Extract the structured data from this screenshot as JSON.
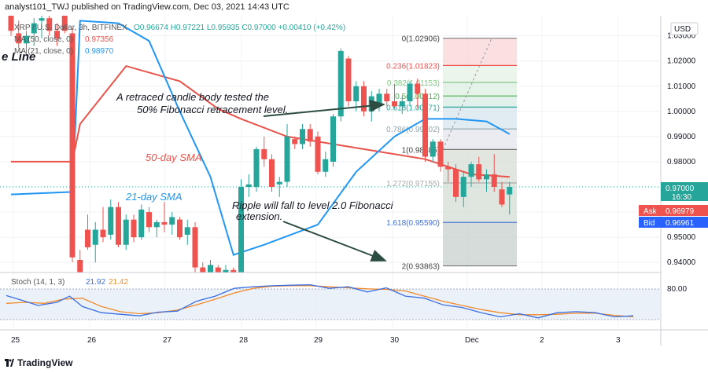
{
  "header": "analyst101_TWJ published on TradingView.com, Dec 03, 2021 14:43 UTC",
  "footer": "TradingView",
  "legend": {
    "symbol": "XRP / U.S. Dollar, 3h, BITFINEX",
    "ohlc": "O0.96674 H0.97221 L0.95935 C0.97000 +0.00410 (+0.42%)",
    "ma50": "MA (50, close, 0)",
    "ma50_value": "0.97356",
    "ma21": "MA (21, close, 0)",
    "ma21_value": "0.98970",
    "fragment": "e Line"
  },
  "annotations": {
    "note1_line1": "A retraced candle body tested the",
    "note1_line2": "50% Fibonacci retracement level.",
    "note2_line1": "Ripple will fall to level 2.0 Fibonacci",
    "note2_line2": "extension.",
    "sma50": "50-day SMA",
    "sma21": "21-day SMA"
  },
  "price_panel": {
    "currency": "USD",
    "current_price": "0.97000",
    "countdown": "16:30",
    "ask_label": "Ask",
    "ask_value": "0.96979",
    "bid_label": "Bid",
    "bid_value": "0.96961"
  },
  "stoch": {
    "label": "Stoch (14, 1, 3)",
    "k_value": "21.92",
    "d_value": "21.42",
    "level_80": "80.00"
  },
  "colors": {
    "up": "#26a69a",
    "down": "#ef5350",
    "ma50": "#e8534a",
    "ma21": "#2196f3",
    "stoch_k": "#3b6fe0",
    "stoch_d": "#f08b2c"
  },
  "chart_data": {
    "type": "candlestick",
    "symbol": "XRP / U.S. Dollar, 3h, BITFINEX",
    "y_axis_ticks": [
      "1.03000",
      "1.02000",
      "1.01000",
      "1.00000",
      "0.99000",
      "0.98000",
      "0.96000",
      "0.95000",
      "0.94000"
    ],
    "ylim": [
      0.936,
      1.038
    ],
    "x_axis_labels": [
      "25",
      "26",
      "27",
      "28",
      "29",
      "30",
      "Dec",
      "2",
      "3"
    ],
    "fibonacci_levels": [
      {
        "label": "0(1.02906)",
        "value": 1.02906
      },
      {
        "label": "0.236(1.01823)",
        "value": 1.01823
      },
      {
        "label": "0.382(1.01153)",
        "value": 1.01153
      },
      {
        "label": "0.5(1.00612)",
        "value": 1.00612
      },
      {
        "label": "0.618(1.00171)",
        "value": 1.00171
      },
      {
        "label": "0.786(0.99302)",
        "value": 0.99302
      },
      {
        "label": "1(0.98485)",
        "value": 0.98485
      },
      {
        "label": "1.272(0.97155)",
        "value": 0.97155
      },
      {
        "label": "1.618(0.95590)",
        "value": 0.9559
      },
      {
        "label": "2(0.93863)",
        "value": 0.93863
      }
    ],
    "candles": [
      {
        "o": 1.038,
        "h": 1.039,
        "l": 1.03,
        "c": 1.032
      },
      {
        "o": 1.031,
        "h": 1.036,
        "l": 1.025,
        "c": 1.027
      },
      {
        "o": 1.027,
        "h": 1.032,
        "l": 1.022,
        "c": 1.03
      },
      {
        "o": 1.031,
        "h": 1.037,
        "l": 1.026,
        "c": 1.035
      },
      {
        "o": 1.036,
        "h": 1.039,
        "l": 1.029,
        "c": 1.037
      },
      {
        "o": 1.037,
        "h": 1.038,
        "l": 1.03,
        "c": 1.032
      },
      {
        "o": 1.032,
        "h": 1.035,
        "l": 1.026,
        "c": 1.029
      },
      {
        "o": 1.038,
        "h": 1.039,
        "l": 1.031,
        "c": 1.032
      },
      {
        "o": 1.031,
        "h": 1.033,
        "l": 0.94,
        "c": 0.942
      },
      {
        "o": 0.941,
        "h": 0.945,
        "l": 0.93,
        "c": 0.932
      },
      {
        "o": 0.953,
        "h": 0.959,
        "l": 0.945,
        "c": 0.946
      },
      {
        "o": 0.947,
        "h": 0.956,
        "l": 0.94,
        "c": 0.953
      },
      {
        "o": 0.953,
        "h": 0.962,
        "l": 0.948,
        "c": 0.95
      },
      {
        "o": 0.951,
        "h": 0.965,
        "l": 0.949,
        "c": 0.962
      },
      {
        "o": 0.962,
        "h": 0.964,
        "l": 0.946,
        "c": 0.947
      },
      {
        "o": 0.947,
        "h": 0.959,
        "l": 0.945,
        "c": 0.957
      },
      {
        "o": 0.957,
        "h": 0.959,
        "l": 0.948,
        "c": 0.95
      },
      {
        "o": 0.95,
        "h": 0.963,
        "l": 0.949,
        "c": 0.961
      },
      {
        "o": 0.96,
        "h": 0.962,
        "l": 0.952,
        "c": 0.954
      },
      {
        "o": 0.954,
        "h": 0.957,
        "l": 0.95,
        "c": 0.956
      },
      {
        "o": 0.956,
        "h": 0.964,
        "l": 0.952,
        "c": 0.955
      },
      {
        "o": 0.955,
        "h": 0.96,
        "l": 0.951,
        "c": 0.958
      },
      {
        "o": 0.957,
        "h": 0.958,
        "l": 0.949,
        "c": 0.95
      },
      {
        "o": 0.951,
        "h": 0.957,
        "l": 0.947,
        "c": 0.954
      },
      {
        "o": 0.954,
        "h": 0.956,
        "l": 0.936,
        "c": 0.938
      },
      {
        "o": 0.938,
        "h": 0.94,
        "l": 0.928,
        "c": 0.929
      },
      {
        "o": 0.93,
        "h": 0.941,
        "l": 0.927,
        "c": 0.939
      },
      {
        "o": 0.938,
        "h": 0.939,
        "l": 0.93,
        "c": 0.933
      },
      {
        "o": 0.934,
        "h": 0.939,
        "l": 0.931,
        "c": 0.937
      },
      {
        "o": 0.937,
        "h": 0.938,
        "l": 0.93,
        "c": 0.931
      },
      {
        "o": 0.931,
        "h": 0.973,
        "l": 0.93,
        "c": 0.97
      },
      {
        "o": 0.97,
        "h": 0.975,
        "l": 0.966,
        "c": 0.971
      },
      {
        "o": 0.97,
        "h": 0.986,
        "l": 0.968,
        "c": 0.985
      },
      {
        "o": 0.985,
        "h": 0.99,
        "l": 0.978,
        "c": 0.981
      },
      {
        "o": 0.981,
        "h": 0.983,
        "l": 0.968,
        "c": 0.97
      },
      {
        "o": 0.971,
        "h": 0.974,
        "l": 0.966,
        "c": 0.972
      },
      {
        "o": 0.972,
        "h": 0.995,
        "l": 0.97,
        "c": 0.99
      },
      {
        "o": 0.989,
        "h": 0.99,
        "l": 0.985,
        "c": 0.987
      },
      {
        "o": 0.987,
        "h": 0.995,
        "l": 0.985,
        "c": 0.993
      },
      {
        "o": 0.993,
        "h": 0.995,
        "l": 0.986,
        "c": 0.988
      },
      {
        "o": 0.99,
        "h": 0.992,
        "l": 0.975,
        "c": 0.976
      },
      {
        "o": 0.976,
        "h": 0.984,
        "l": 0.974,
        "c": 0.981
      },
      {
        "o": 0.98,
        "h": 0.999,
        "l": 0.978,
        "c": 0.998
      },
      {
        "o": 0.998,
        "h": 1.025,
        "l": 0.996,
        "c": 1.024
      },
      {
        "o": 1.021,
        "h": 1.022,
        "l": 1.002,
        "c": 1.004
      },
      {
        "o": 1.004,
        "h": 1.012,
        "l": 1.0,
        "c": 1.01
      },
      {
        "o": 1.01,
        "h": 1.012,
        "l": 0.998,
        "c": 1.0
      },
      {
        "o": 1.0,
        "h": 1.008,
        "l": 0.996,
        "c": 1.006
      },
      {
        "o": 1.003,
        "h": 1.009,
        "l": 1.0,
        "c": 1.007
      },
      {
        "o": 1.007,
        "h": 1.009,
        "l": 1.002,
        "c": 1.004
      },
      {
        "o": 1.004,
        "h": 1.011,
        "l": 1.001,
        "c": 1.002
      },
      {
        "o": 1.002,
        "h": 1.006,
        "l": 0.999,
        "c": 1.004
      },
      {
        "o": 1.004,
        "h": 1.012,
        "l": 1.002,
        "c": 1.011
      },
      {
        "o": 1.011,
        "h": 1.013,
        "l": 1.001,
        "c": 1.007
      },
      {
        "o": 1.007,
        "h": 1.009,
        "l": 0.98,
        "c": 0.982
      },
      {
        "o": 0.982,
        "h": 0.989,
        "l": 0.98,
        "c": 0.988
      },
      {
        "o": 0.988,
        "h": 0.989,
        "l": 0.976,
        "c": 0.978
      },
      {
        "o": 0.978,
        "h": 0.98,
        "l": 0.972,
        "c": 0.977
      },
      {
        "o": 0.977,
        "h": 0.979,
        "l": 0.964,
        "c": 0.966
      },
      {
        "o": 0.966,
        "h": 0.976,
        "l": 0.962,
        "c": 0.974
      },
      {
        "o": 0.974,
        "h": 0.98,
        "l": 0.97,
        "c": 0.979
      },
      {
        "o": 0.979,
        "h": 0.982,
        "l": 0.972,
        "c": 0.973
      },
      {
        "o": 0.973,
        "h": 0.977,
        "l": 0.968,
        "c": 0.975
      },
      {
        "o": 0.975,
        "h": 0.983,
        "l": 0.968,
        "c": 0.97
      },
      {
        "o": 0.969,
        "h": 0.972,
        "l": 0.962,
        "c": 0.963
      },
      {
        "o": 0.967,
        "h": 0.972,
        "l": 0.959,
        "c": 0.97
      }
    ],
    "ma50": [
      [
        0,
        0.98
      ],
      [
        8,
        0.98
      ],
      [
        9,
        0.995
      ],
      [
        15,
        1.018
      ],
      [
        22,
        1.012
      ],
      [
        27,
        1.001
      ],
      [
        30,
        0.997
      ],
      [
        36,
        0.99
      ],
      [
        42,
        0.987
      ],
      [
        48,
        0.984
      ],
      [
        54,
        0.981
      ],
      [
        60,
        0.975
      ],
      [
        65,
        0.974
      ]
    ],
    "ma21": [
      [
        0,
        0.967
      ],
      [
        8,
        0.968
      ],
      [
        9,
        1.036
      ],
      [
        14,
        1.035
      ],
      [
        18,
        1.028
      ],
      [
        22,
        1.0
      ],
      [
        26,
        0.974
      ],
      [
        29,
        0.943
      ],
      [
        33,
        0.947
      ],
      [
        40,
        0.955
      ],
      [
        45,
        0.976
      ],
      [
        50,
        0.99
      ],
      [
        54,
        0.997
      ],
      [
        58,
        0.997
      ],
      [
        62,
        0.996
      ],
      [
        65,
        0.991
      ]
    ],
    "stoch_k": [
      [
        0,
        63
      ],
      [
        3,
        52
      ],
      [
        5,
        44
      ],
      [
        8,
        50
      ],
      [
        10,
        62
      ],
      [
        12,
        42
      ],
      [
        15,
        30
      ],
      [
        18,
        27
      ],
      [
        21,
        24
      ],
      [
        24,
        31
      ],
      [
        27,
        33
      ],
      [
        30,
        52
      ],
      [
        33,
        62
      ],
      [
        36,
        77
      ],
      [
        39,
        80
      ],
      [
        42,
        82
      ],
      [
        45,
        83
      ],
      [
        48,
        84
      ],
      [
        51,
        77
      ],
      [
        54,
        80
      ],
      [
        57,
        70
      ],
      [
        60,
        78
      ],
      [
        63,
        62
      ],
      [
        66,
        58
      ],
      [
        69,
        45
      ],
      [
        72,
        40
      ],
      [
        75,
        30
      ],
      [
        78,
        22
      ],
      [
        81,
        28
      ],
      [
        84,
        20
      ],
      [
        87,
        30
      ],
      [
        90,
        32
      ],
      [
        93,
        30
      ],
      [
        96,
        22
      ],
      [
        99,
        24
      ]
    ],
    "stoch_d": [
      [
        0,
        48
      ],
      [
        3,
        50
      ],
      [
        6,
        48
      ],
      [
        9,
        56
      ],
      [
        12,
        58
      ],
      [
        15,
        42
      ],
      [
        18,
        32
      ],
      [
        21,
        28
      ],
      [
        24,
        30
      ],
      [
        27,
        35
      ],
      [
        30,
        45
      ],
      [
        33,
        56
      ],
      [
        36,
        68
      ],
      [
        39,
        77
      ],
      [
        42,
        81
      ],
      [
        45,
        82
      ],
      [
        48,
        82
      ],
      [
        51,
        80
      ],
      [
        54,
        78
      ],
      [
        57,
        76
      ],
      [
        60,
        75
      ],
      [
        63,
        72
      ],
      [
        66,
        62
      ],
      [
        69,
        52
      ],
      [
        72,
        44
      ],
      [
        75,
        36
      ],
      [
        78,
        30
      ],
      [
        81,
        26
      ],
      [
        84,
        26
      ],
      [
        87,
        27
      ],
      [
        90,
        29
      ],
      [
        93,
        29
      ],
      [
        96,
        25
      ],
      [
        99,
        22
      ]
    ]
  }
}
